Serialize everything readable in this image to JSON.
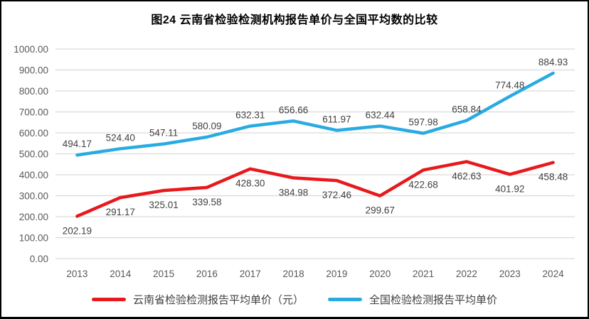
{
  "window": {
    "title": "图24 云南省检验检测机构报告单价与全国平均数的比较"
  },
  "chart_data": {
    "type": "line",
    "title": "图24 云南省检验检测机构报告单价与全国平均数的比较",
    "categories": [
      "2013",
      "2014",
      "2015",
      "2016",
      "2017",
      "2018",
      "2019",
      "2020",
      "2021",
      "2022",
      "2023",
      "2024"
    ],
    "series": [
      {
        "name": "云南省检验检测报告平均单价（元）",
        "color": "#E7191D",
        "label_position": "below",
        "values": [
          202.19,
          291.17,
          325.01,
          339.58,
          428.3,
          384.98,
          372.46,
          299.67,
          422.68,
          462.63,
          401.92,
          458.48
        ]
      },
      {
        "name": "全国检验检测报告平均单价",
        "color": "#29ABE2",
        "label_position": "above",
        "values": [
          494.17,
          524.4,
          547.11,
          580.09,
          632.31,
          656.66,
          611.97,
          632.44,
          597.98,
          658.84,
          774.48,
          884.93
        ]
      }
    ],
    "ylim": [
      0,
      1000
    ],
    "ytick_step": 100,
    "yticks": [
      "0.00",
      "100.00",
      "200.00",
      "300.00",
      "400.00",
      "500.00",
      "600.00",
      "700.00",
      "800.00",
      "900.00",
      "1000.00"
    ],
    "grid": true,
    "legend_position": "bottom",
    "data_labels": true,
    "colors": {
      "gridline": "#D9D9D9",
      "axis_text": "#595959",
      "data_label": "#404040",
      "title": "#000000",
      "border": "#000000"
    }
  }
}
